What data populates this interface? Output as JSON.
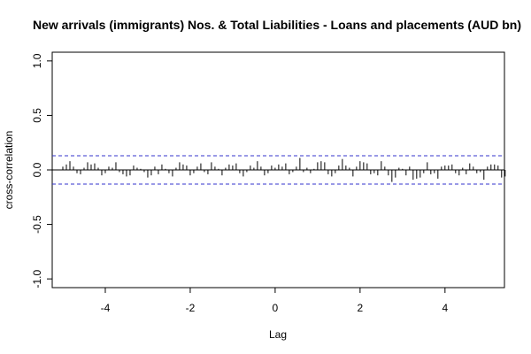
{
  "chart_data": {
    "type": "bar",
    "title": "New arrivals (immigrants) Nos. & Total Liabilities - Loans and placements (AUD bn)",
    "xlabel": "Lag",
    "ylabel": "cross-correlation",
    "xlim": [
      -5.25,
      5.4
    ],
    "ylim": [
      -1.08,
      1.08
    ],
    "x_ticks": [
      -4,
      -2,
      0,
      2,
      4
    ],
    "y_ticks": [
      -1.0,
      -0.5,
      0.0,
      0.5,
      1.0
    ],
    "x_tick_labels": [
      "-4",
      "-2",
      "0",
      "2",
      "4"
    ],
    "y_tick_labels": [
      "-1.0",
      "-0.5",
      "0.0",
      "0.5",
      "1.0"
    ],
    "confidence_bound": 0.13,
    "bound_color": "#3333cc",
    "bar_color": "#000000",
    "lag_start": -5.0,
    "lag_step": 0.08333,
    "values": [
      0.03,
      0.05,
      0.08,
      0.03,
      -0.03,
      -0.04,
      0.02,
      0.07,
      0.05,
      0.06,
      0.02,
      -0.05,
      -0.03,
      0.03,
      0.02,
      0.07,
      -0.02,
      -0.04,
      -0.06,
      -0.05,
      0.04,
      0.02,
      0.01,
      -0.02,
      -0.07,
      -0.05,
      0.03,
      -0.04,
      0.05,
      0.01,
      -0.03,
      -0.06,
      0.02,
      0.07,
      0.05,
      0.04,
      -0.05,
      -0.03,
      0.03,
      0.06,
      -0.02,
      -0.04,
      0.07,
      0.03,
      0.01,
      -0.05,
      0.02,
      0.05,
      0.04,
      0.06,
      -0.03,
      -0.06,
      -0.02,
      0.04,
      0.02,
      0.08,
      0.03,
      -0.05,
      -0.03,
      0.04,
      0.02,
      0.05,
      0.03,
      0.06,
      -0.04,
      -0.02,
      0.03,
      0.11,
      -0.02,
      0.02,
      -0.03,
      0.01,
      0.07,
      0.08,
      0.07,
      -0.04,
      -0.06,
      -0.03,
      0.04,
      0.1,
      0.04,
      0.02,
      -0.06,
      0.03,
      0.08,
      0.07,
      0.06,
      -0.04,
      -0.03,
      -0.05,
      0.08,
      0.03,
      -0.05,
      -0.11,
      -0.07,
      0.02,
      0.01,
      -0.05,
      0.03,
      -0.09,
      -0.08,
      -0.07,
      -0.03,
      0.07,
      -0.04,
      -0.03,
      -0.08,
      0.03,
      0.04,
      0.04,
      0.05,
      -0.03,
      -0.05,
      0.02,
      -0.04,
      0.06,
      0.03,
      -0.03,
      -0.02,
      -0.09,
      0.03,
      0.05,
      0.05,
      0.04,
      -0.07,
      -0.06
    ]
  }
}
